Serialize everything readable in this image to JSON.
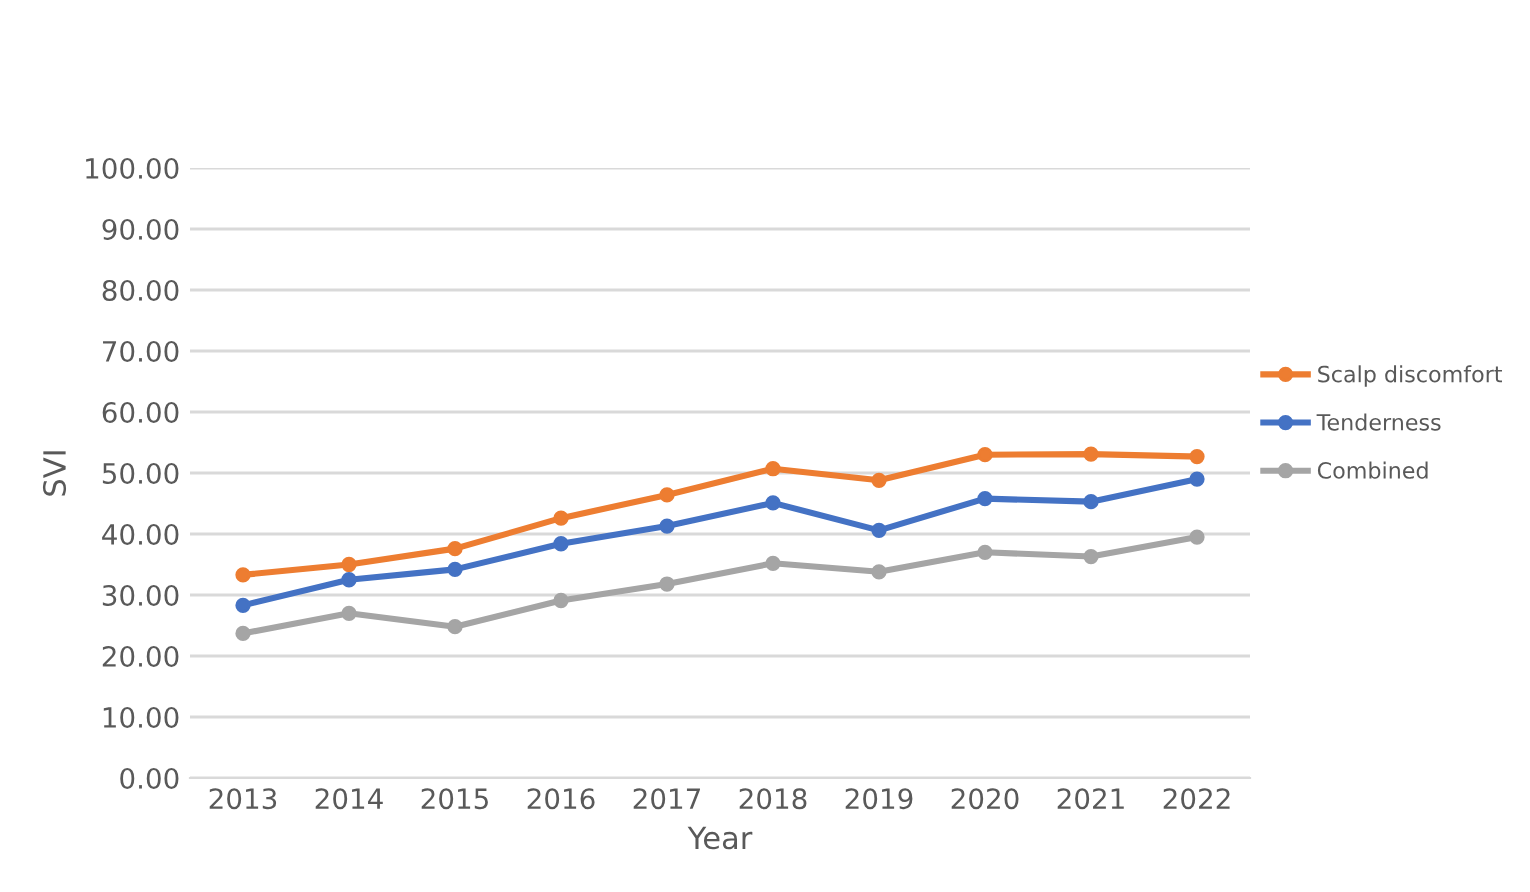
{
  "chart_data": {
    "type": "line",
    "xlabel": "Year",
    "ylabel": "SVI",
    "categories": [
      "2013",
      "2014",
      "2015",
      "2016",
      "2017",
      "2018",
      "2019",
      "2020",
      "2021",
      "2022"
    ],
    "series": [
      {
        "name": "Scalp discomfort",
        "color": "#ed7d31",
        "values": [
          33.3,
          35.0,
          37.6,
          42.6,
          46.4,
          50.7,
          48.8,
          53.0,
          53.1,
          52.7
        ]
      },
      {
        "name": "Tenderness",
        "color": "#4472c4",
        "values": [
          28.3,
          32.5,
          34.2,
          38.4,
          41.3,
          45.1,
          40.6,
          45.8,
          45.3,
          49.0
        ]
      },
      {
        "name": "Combined",
        "color": "#a5a5a5",
        "values": [
          23.7,
          27.0,
          24.8,
          29.1,
          31.8,
          35.2,
          33.8,
          37.0,
          36.3,
          39.5
        ]
      }
    ],
    "ylim": [
      0,
      100
    ],
    "yticks": [
      {
        "value": 0,
        "label": "0.00"
      },
      {
        "value": 10,
        "label": "10.00"
      },
      {
        "value": 20,
        "label": "20.00"
      },
      {
        "value": 30,
        "label": "30.00"
      },
      {
        "value": 40,
        "label": "40.00"
      },
      {
        "value": 50,
        "label": "50.00"
      },
      {
        "value": 60,
        "label": "60.00"
      },
      {
        "value": 70,
        "label": "70.00"
      },
      {
        "value": 80,
        "label": "80.00"
      },
      {
        "value": 90,
        "label": "90.00"
      },
      {
        "value": 100,
        "label": "100.00"
      }
    ],
    "grid": "y",
    "legend": "right",
    "marker": "circle",
    "line_style": "solid"
  }
}
